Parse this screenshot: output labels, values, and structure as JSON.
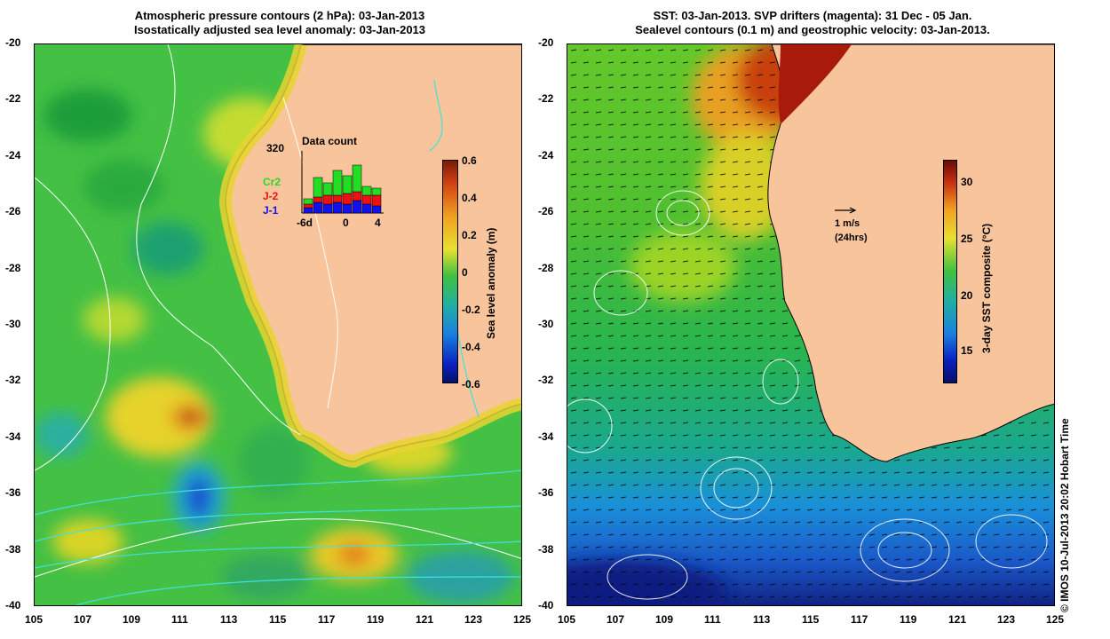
{
  "left_panel": {
    "title_line1": "Atmospheric pressure contours (2 hPa): 03-Jan-2013",
    "title_line2": "Isostatically adjusted sea level anomaly: 03-Jan-2013",
    "colorbar_label": "Sea level anomaly (m)",
    "colorbar_ticks": [
      "0.6",
      "0.4",
      "0.2",
      "0",
      "-0.2",
      "-0.4",
      "-0.6"
    ],
    "inset": {
      "title": "Data count",
      "max_label": "320",
      "legend": [
        {
          "name": "Cr2",
          "color": "#22dd22"
        },
        {
          "name": "J-2",
          "color": "#ee1111"
        },
        {
          "name": "J-1",
          "color": "#1111ee"
        }
      ],
      "xticks": [
        "-6d",
        "0",
        "4"
      ]
    }
  },
  "right_panel": {
    "title_line1": "SST: 03-Jan-2013. SVP drifters (magenta): 31 Dec - 05 Jan.",
    "title_line2": "Sealevel contours (0.1 m) and geostrophic velocity: 03-Jan-2013.",
    "colorbar_label": "3-day SST composite (°C)",
    "colorbar_ticks": [
      "30",
      "25",
      "20",
      "15"
    ],
    "scale_arrow_label1": "1 m/s",
    "scale_arrow_label2": "(24hrs)"
  },
  "axes": {
    "lat_ticks": [
      "-20",
      "-22",
      "-24",
      "-26",
      "-28",
      "-30",
      "-32",
      "-34",
      "-36",
      "-38",
      "-40"
    ],
    "lon_ticks": [
      "105",
      "107",
      "109",
      "111",
      "113",
      "115",
      "117",
      "119",
      "121",
      "123",
      "125"
    ]
  },
  "credit": "© IMOS 10-Jul-2013 20:02 Hobart Time"
}
